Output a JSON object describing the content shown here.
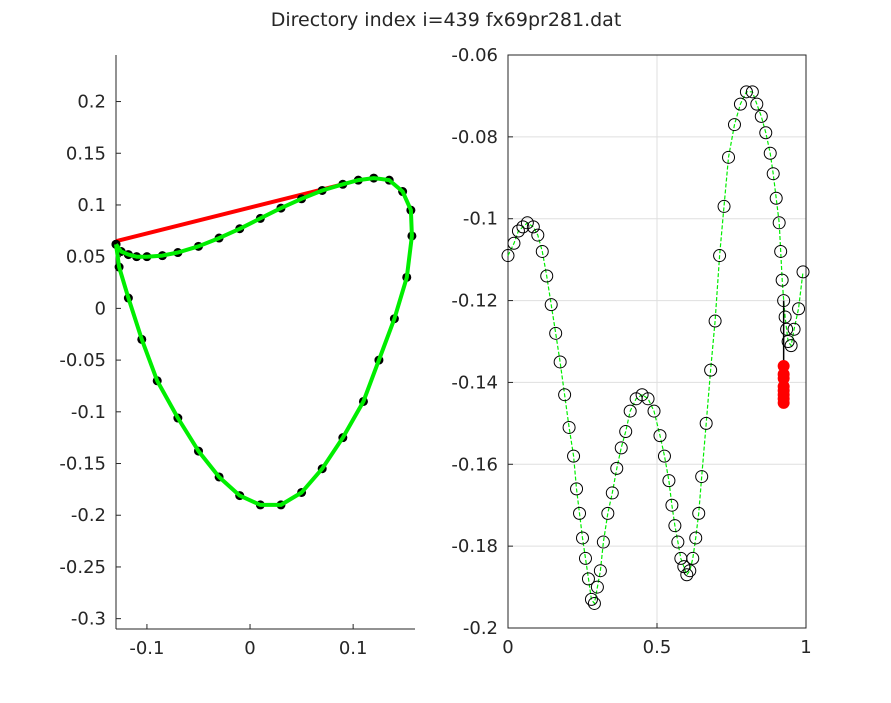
{
  "title": "Directory index i=439 fx69pr281.dat",
  "colors": {
    "axis": "#262626",
    "grid": "#dfdfdf",
    "marker_black": "#000000",
    "line_green": "#00ee00",
    "line_red": "#ff0000",
    "marker_red": "#ff0000"
  },
  "chart_data": [
    {
      "type": "line",
      "panel": "left",
      "xlim": [
        -0.13,
        0.16
      ],
      "ylim": [
        -0.31,
        0.245
      ],
      "x_ticks": [
        -0.1,
        0,
        0.1
      ],
      "x_tick_labels": [
        "-0.1",
        "0",
        "0.1"
      ],
      "y_ticks": [
        0.2,
        0.15,
        0.1,
        0.05,
        0,
        -0.05,
        -0.1,
        -0.15,
        -0.2,
        -0.25,
        -0.3
      ],
      "y_tick_labels": [
        "0.2",
        "0.15",
        "0.1",
        "0.05",
        "0",
        "-0.05",
        "-0.1",
        "-0.15",
        "-0.2",
        "-0.25",
        "-0.3"
      ],
      "grid": false,
      "red_chord": {
        "x": [
          -0.13,
          0.09
        ],
        "y": [
          0.065,
          0.12
        ]
      },
      "loop": {
        "x": [
          -0.13,
          -0.125,
          -0.118,
          -0.11,
          -0.1,
          -0.085,
          -0.07,
          -0.05,
          -0.03,
          -0.01,
          0.01,
          0.03,
          0.05,
          0.07,
          0.09,
          0.105,
          0.12,
          0.135,
          0.148,
          0.156,
          0.157,
          0.152,
          0.14,
          0.125,
          0.11,
          0.09,
          0.07,
          0.05,
          0.03,
          0.01,
          -0.01,
          -0.03,
          -0.05,
          -0.07,
          -0.09,
          -0.105,
          -0.118,
          -0.127,
          -0.13
        ],
        "y": [
          0.062,
          0.055,
          0.052,
          0.05,
          0.05,
          0.051,
          0.054,
          0.06,
          0.068,
          0.077,
          0.087,
          0.097,
          0.106,
          0.114,
          0.12,
          0.124,
          0.126,
          0.124,
          0.113,
          0.095,
          0.07,
          0.03,
          -0.01,
          -0.05,
          -0.09,
          -0.125,
          -0.155,
          -0.178,
          -0.19,
          -0.19,
          -0.181,
          -0.163,
          -0.138,
          -0.106,
          -0.07,
          -0.03,
          0.01,
          0.04,
          0.062
        ]
      }
    },
    {
      "type": "scatter",
      "panel": "right",
      "xlim": [
        0,
        1
      ],
      "ylim": [
        -0.2,
        -0.06
      ],
      "x_ticks": [
        0,
        0.5,
        1
      ],
      "x_tick_labels": [
        "0",
        "0.5",
        "1"
      ],
      "y_ticks": [
        -0.06,
        -0.08,
        -0.1,
        -0.12,
        -0.14,
        -0.16,
        -0.18,
        -0.2
      ],
      "y_tick_labels": [
        "-0.06",
        "-0.08",
        "-0.1",
        "-0.12",
        "-0.14",
        "-0.16",
        "-0.18",
        "-0.2"
      ],
      "grid": true,
      "open_markers": {
        "x": [
          0.0,
          0.02,
          0.035,
          0.05,
          0.065,
          0.085,
          0.1,
          0.115,
          0.13,
          0.145,
          0.16,
          0.175,
          0.19,
          0.205,
          0.22,
          0.23,
          0.24,
          0.25,
          0.26,
          0.27,
          0.28,
          0.29,
          0.3,
          0.31,
          0.32,
          0.335,
          0.35,
          0.365,
          0.38,
          0.395,
          0.41,
          0.43,
          0.45,
          0.47,
          0.49,
          0.51,
          0.525,
          0.54,
          0.55,
          0.56,
          0.57,
          0.58,
          0.59,
          0.6,
          0.61,
          0.62,
          0.63,
          0.64,
          0.65,
          0.665,
          0.68,
          0.695,
          0.71,
          0.725,
          0.74,
          0.76,
          0.78,
          0.8,
          0.82,
          0.835,
          0.85,
          0.865,
          0.88,
          0.89,
          0.9,
          0.91,
          0.915,
          0.92,
          0.925,
          0.93,
          0.935,
          0.94,
          0.95,
          0.96,
          0.975,
          0.99
        ],
        "y": [
          -0.109,
          -0.106,
          -0.103,
          -0.102,
          -0.101,
          -0.102,
          -0.104,
          -0.108,
          -0.114,
          -0.121,
          -0.128,
          -0.135,
          -0.143,
          -0.151,
          -0.158,
          -0.166,
          -0.172,
          -0.178,
          -0.183,
          -0.188,
          -0.193,
          -0.194,
          -0.19,
          -0.186,
          -0.179,
          -0.172,
          -0.167,
          -0.161,
          -0.156,
          -0.152,
          -0.147,
          -0.144,
          -0.143,
          -0.144,
          -0.147,
          -0.153,
          -0.158,
          -0.164,
          -0.17,
          -0.175,
          -0.179,
          -0.183,
          -0.185,
          -0.187,
          -0.186,
          -0.183,
          -0.178,
          -0.172,
          -0.163,
          -0.15,
          -0.137,
          -0.125,
          -0.109,
          -0.097,
          -0.085,
          -0.077,
          -0.072,
          -0.069,
          -0.069,
          -0.072,
          -0.075,
          -0.079,
          -0.084,
          -0.089,
          -0.095,
          -0.101,
          -0.108,
          -0.115,
          -0.12,
          -0.124,
          -0.127,
          -0.13,
          -0.131,
          -0.127,
          -0.122,
          -0.113
        ]
      },
      "red_markers": {
        "x": [
          0.925,
          0.925,
          0.925,
          0.925,
          0.925,
          0.925,
          0.925,
          0.925
        ],
        "y": [
          -0.136,
          -0.138,
          -0.139,
          -0.141,
          -0.142,
          -0.143,
          -0.144,
          -0.145
        ]
      },
      "black_segment": {
        "x": [
          0.925,
          0.925
        ],
        "y": [
          -0.12,
          -0.136
        ]
      }
    }
  ]
}
